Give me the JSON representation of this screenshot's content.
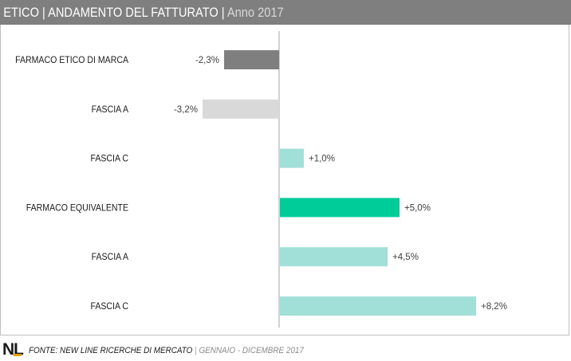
{
  "header": {
    "title": "ETICO | ANDAMENTO DEL FATTURATO |",
    "subtitle": "Anno 2017"
  },
  "chart_data": {
    "type": "bar",
    "orientation": "horizontal",
    "categories": [
      "FARMACO ETICO DI MARCA",
      "FASCIA A",
      "FASCIA C",
      "FARMACO EQUIVALENTE",
      "FASCIA A",
      "FASCIA C"
    ],
    "values": [
      -2.3,
      -3.2,
      1.0,
      5.0,
      4.5,
      8.2
    ],
    "value_labels": [
      "-2,3%",
      "-3,2%",
      "+1,0%",
      "+5,0%",
      "+4,5%",
      "+8,2%"
    ],
    "colors": [
      "#7f7f7f",
      "#d9d9d9",
      "#a1e0d9",
      "#00cc99",
      "#a1e0d9",
      "#a1e0d9"
    ],
    "xlim": [
      -6.0,
      9.6
    ],
    "grid": false,
    "legend": "none"
  },
  "footer": {
    "logo": "NL",
    "source": "FONTE:  NEW LINE RICERCHE DI MERCATO",
    "separator": "|",
    "period": "GENNAIO - DICEMBRE 2017"
  }
}
